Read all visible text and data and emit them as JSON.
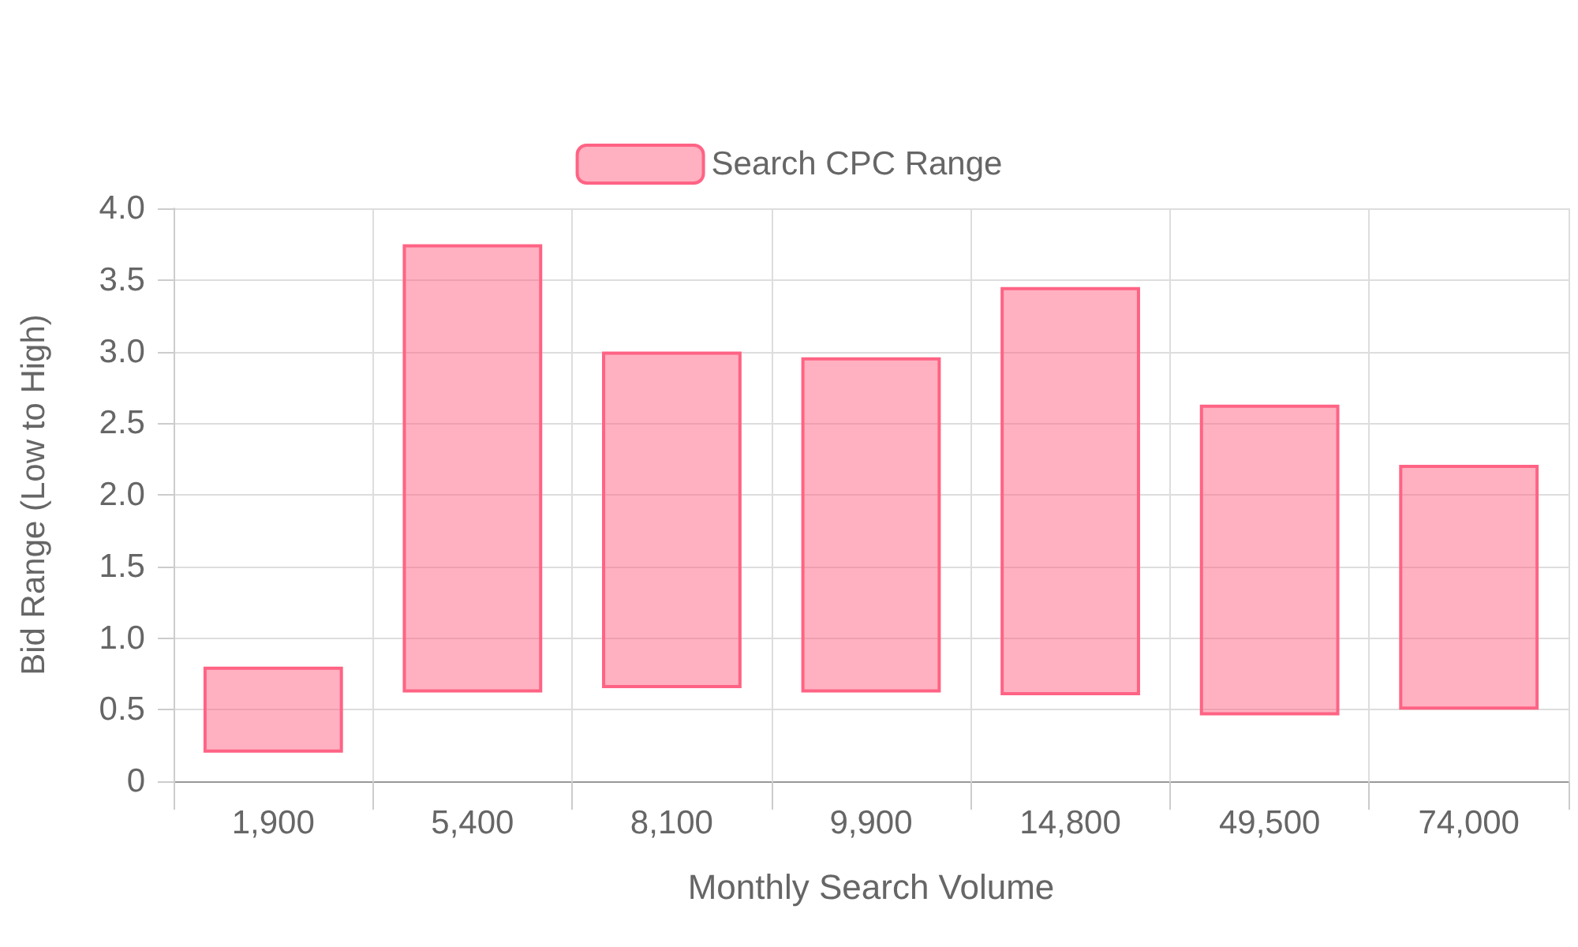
{
  "chart_data": {
    "type": "bar",
    "xlabel": "Monthly Search Volume",
    "ylabel": "Bid Range (Low to High)",
    "categories": [
      "1,900",
      "5,400",
      "8,100",
      "9,900",
      "14,800",
      "49,500",
      "74,000"
    ],
    "series": [
      {
        "name": "Search CPC Range",
        "color": "#ff6384",
        "values": [
          0.6,
          3.13,
          2.35,
          2.34,
          2.85,
          2.17,
          1.71
        ],
        "base": [
          0.2,
          0.62,
          0.65,
          0.62,
          0.6,
          0.46,
          0.5
        ]
      }
    ],
    "ylim": [
      0,
      4
    ],
    "yticks": [
      0,
      0.5,
      {
        "value": 1,
        "label": "1.0"
      },
      1.5,
      {
        "value": 2,
        "label": "2.0"
      },
      2.5,
      {
        "value": 3,
        "label": "3.0"
      },
      3.5,
      {
        "value": 4,
        "label": "4.0"
      }
    ],
    "grid": true,
    "legend": "top"
  }
}
